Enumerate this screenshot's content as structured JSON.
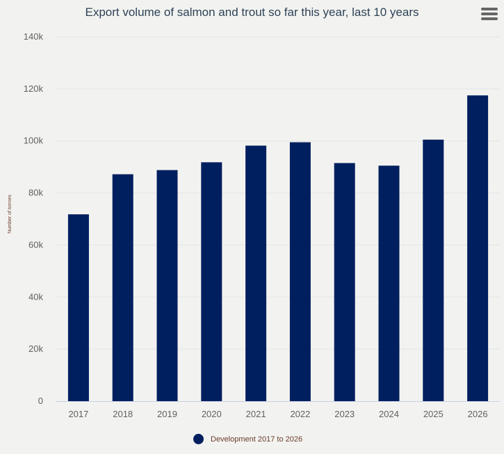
{
  "chart_data": {
    "type": "bar",
    "title": "Export volume of salmon and trout so far this year, last 10 years",
    "xlabel": "",
    "ylabel": "Number of tonnes",
    "categories": [
      "2017",
      "2018",
      "2019",
      "2020",
      "2021",
      "2022",
      "2023",
      "2024",
      "2025",
      "2026"
    ],
    "series": [
      {
        "name": "Development 2017 to 2026",
        "values": [
          71800,
          87200,
          88800,
          91800,
          98200,
          99500,
          91500,
          90500,
          100500,
          117500
        ]
      }
    ],
    "ylim": [
      0,
      140000
    ],
    "yticks": [
      0,
      20000,
      40000,
      60000,
      80000,
      100000,
      120000,
      140000
    ],
    "ytick_labels": [
      "0",
      "20k",
      "40k",
      "60k",
      "80k",
      "100k",
      "120k",
      "140k"
    ],
    "grid": true,
    "legend": "bottom-center"
  },
  "colors": {
    "bar": "#001f5f",
    "grid": "#e2e4e6",
    "axis": "#c8cfe6",
    "tick_text": "#606060",
    "ylabel_text": "#6d3a2a",
    "background": "#f2f3f0"
  },
  "menu": {
    "icon": "hamburger-menu-icon"
  }
}
